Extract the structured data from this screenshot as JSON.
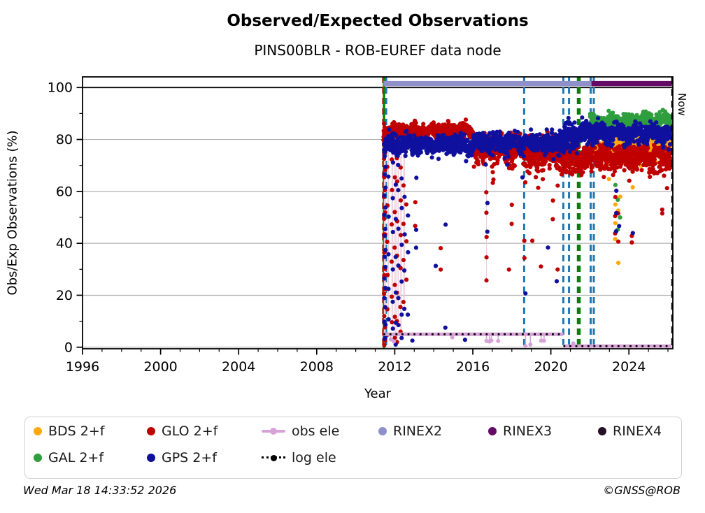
{
  "footer": {
    "left": "Wed Mar 18 14:33:52 2026",
    "right": "©GNSS@ROB"
  },
  "chart_data": {
    "type": "scatter",
    "title": "Observed/Expected Observations",
    "subtitle": "PINS00BLR - ROB-EUREF data node",
    "xlabel": "Year",
    "ylabel": "Obs/Exp Observations (%)",
    "xlim": [
      1996,
      2026.25
    ],
    "ylim": [
      -0.6,
      104.1
    ],
    "x_major_ticks": [
      1996,
      2000,
      2004,
      2008,
      2012,
      2016,
      2020,
      2024
    ],
    "x_tick_labels": [
      "1996",
      "2000",
      "2004",
      "2008",
      "2012",
      "2016",
      "2020",
      "2024"
    ],
    "x_minor_step": 1,
    "y_major_ticks": [
      0,
      20,
      40,
      60,
      80,
      100
    ],
    "y_tick_labels": [
      "0",
      "20",
      "40",
      "60",
      "80",
      "100"
    ],
    "y_minor_step": 10,
    "grid_y": [
      0,
      20,
      40,
      60,
      80
    ],
    "hline_black": 100,
    "grid_color": "#b0b0b0",
    "now": {
      "x": 2026.21,
      "label": "Now",
      "color": "#000000",
      "style": "dashed",
      "width": 2.2
    },
    "vlines": [
      {
        "x": 2011.4,
        "color": "#cc0000",
        "style": "dashed",
        "width": 2.6
      },
      {
        "x": 2011.45,
        "color": "#008000",
        "style": "solid",
        "width": 3.4
      },
      {
        "x": 2011.56,
        "color": "#1f77b4",
        "style": "dashed",
        "width": 3.0
      },
      {
        "x": 2018.63,
        "color": "#1f77b4",
        "style": "dashed",
        "width": 3.0
      },
      {
        "x": 2020.64,
        "color": "#1f77b4",
        "style": "dashed",
        "width": 3.0
      },
      {
        "x": 2020.93,
        "color": "#1f77b4",
        "style": "dashed",
        "width": 3.0
      },
      {
        "x": 2021.43,
        "color": "#0a7d0a",
        "style": "dashed",
        "width": 5.5
      },
      {
        "x": 2022.04,
        "color": "#1f77b4",
        "style": "dashed",
        "width": 3.0
      },
      {
        "x": 2022.2,
        "color": "#1f77b4",
        "style": "dashed",
        "width": 3.0
      }
    ],
    "rinex_lines": [
      {
        "name": "RINEX2",
        "color": "#8f8fc9",
        "from": 2011.42,
        "to": 2022.08,
        "y": 101.5
      },
      {
        "name": "RINEX3",
        "color": "#640b66",
        "from": 2022.08,
        "to": 2026.21,
        "y": 101.5
      }
    ],
    "ele_lines": {
      "obs": {
        "name": "obs ele",
        "color": "#d7a3d7",
        "width": 5,
        "segments": [
          {
            "from": 2011.42,
            "to": 2020.64,
            "y": 5.0
          },
          {
            "from": 2020.64,
            "to": 2026.18,
            "y": 0.4
          }
        ],
        "drops": [
          {
            "x": 2011.8,
            "y": 3.0
          },
          {
            "x": 2011.95,
            "y": 2.2
          },
          {
            "x": 2014.95,
            "y": 3.8
          },
          {
            "x": 2016.7,
            "y": 2.4
          },
          {
            "x": 2016.85,
            "y": 2.2
          },
          {
            "x": 2016.95,
            "y": 2.6
          },
          {
            "x": 2017.3,
            "y": 2.4
          },
          {
            "x": 2018.7,
            "y": 0.4
          },
          {
            "x": 2018.95,
            "y": 1.0
          },
          {
            "x": 2019.5,
            "y": 2.5
          },
          {
            "x": 2019.65,
            "y": 2.5
          },
          {
            "x": 2021.15,
            "y": 1.5
          }
        ]
      },
      "log": {
        "name": "log ele",
        "color": "#000000",
        "width": 2.8,
        "segments": [
          {
            "from": 2011.42,
            "to": 2020.64,
            "y": 5.0
          },
          {
            "from": 2020.64,
            "to": 2026.18,
            "y": 0.4
          }
        ]
      }
    },
    "series": [
      {
        "name": "BDS 2+f",
        "color": "#ffa90e",
        "r": 3.1,
        "segments": [
          {
            "from": 2022.0,
            "to": 2026.18,
            "mean": 78.0,
            "sd": 2.0,
            "n": 430,
            "wobble": 1.0,
            "tail": [
              0.12,
              10
            ]
          }
        ],
        "streaks": [
          {
            "x": 2023.3,
            "values": [
              55,
              48,
              42
            ]
          },
          {
            "x": 2023.45,
            "values": [
              33,
              52
            ]
          },
          {
            "x": 2023.55,
            "values": [
              58
            ]
          },
          {
            "x": 2024.2,
            "values": [
              61
            ]
          }
        ]
      },
      {
        "name": "GAL 2+f",
        "color": "#2e9e3e",
        "r": 3.1,
        "segments": [
          {
            "from": 2022.0,
            "to": 2026.18,
            "mean": 87.0,
            "sd": 1.3,
            "n": 520,
            "wobble": 0.7,
            "tail": [
              0.04,
              8
            ]
          }
        ],
        "streaks": [
          {
            "x": 2023.3,
            "values": [
              73,
              62
            ]
          },
          {
            "x": 2023.42,
            "values": [
              45,
              57
            ]
          },
          {
            "x": 2023.55,
            "values": [
              50
            ]
          },
          {
            "x": 2024.6,
            "values": [
              83
            ]
          }
        ]
      },
      {
        "name": "GLO 2+f",
        "color": "#c00000",
        "r": 3.1,
        "segments": [
          {
            "from": 2011.42,
            "to": 2016.0,
            "mean": 83.3,
            "sd": 1.3,
            "n": 620,
            "wobble": 0.8,
            "tail": [
              0.04,
              9
            ]
          },
          {
            "from": 2016.0,
            "to": 2018.6,
            "mean": 76.5,
            "sd": 2.2,
            "n": 380,
            "wobble": 0.8,
            "tail": [
              0.1,
              11
            ]
          },
          {
            "from": 2018.6,
            "to": 2020.64,
            "mean": 74.5,
            "sd": 2.8,
            "n": 300,
            "wobble": 0.8,
            "tail": [
              0.1,
              11
            ]
          },
          {
            "from": 2020.64,
            "to": 2021.45,
            "mean": 72.5,
            "sd": 3.0,
            "n": 135,
            "wobble": 0.5,
            "tail": [
              0.1,
              8
            ]
          },
          {
            "from": 2021.45,
            "to": 2026.18,
            "mean": 73.5,
            "sd": 2.2,
            "n": 640,
            "wobble": 0.9,
            "tail": [
              0.1,
              9
            ]
          }
        ],
        "streaks": [
          {
            "x": 2011.46,
            "values": [
              78,
              72,
              65,
              58,
              50,
              43,
              36,
              28,
              20,
              12,
              5,
              1
            ]
          },
          {
            "x": 2011.5,
            "values": [
              75,
              68,
              60,
              52,
              44,
              37,
              30,
              22,
              15,
              8,
              3
            ]
          },
          {
            "x": 2011.62,
            "values": [
              70,
              55,
              40,
              28,
              14,
              5
            ]
          },
          {
            "x": 2011.85,
            "values": [
              72,
              60,
              47,
              33,
              20,
              9
            ]
          },
          {
            "x": 2012.0,
            "values": [
              66,
              52,
              38,
              24,
              12,
              4
            ]
          },
          {
            "x": 2012.12,
            "values": [
              73,
              64,
              49,
              35,
              21,
              10,
              2
            ]
          },
          {
            "x": 2012.3,
            "values": [
              69,
              57,
              43,
              30,
              16,
              6
            ]
          },
          {
            "x": 2012.45,
            "values": [
              62,
              48,
              34,
              18
            ]
          },
          {
            "x": 2012.6,
            "values": [
              55,
              41,
              26
            ]
          },
          {
            "x": 2013.05,
            "values": [
              56,
              47
            ]
          },
          {
            "x": 2014.35,
            "values": [
              38,
              30
            ]
          },
          {
            "x": 2016.7,
            "values": [
              60,
              52,
              43,
              35,
              26
            ]
          },
          {
            "x": 2017.85,
            "values": [
              30
            ]
          },
          {
            "x": 2018.0,
            "values": [
              55,
              47
            ]
          },
          {
            "x": 2018.65,
            "values": [
              41,
              34
            ]
          },
          {
            "x": 2019.05,
            "values": [
              41
            ]
          },
          {
            "x": 2019.5,
            "values": [
              31
            ]
          },
          {
            "x": 2020.1,
            "values": [
              57,
              49
            ]
          },
          {
            "x": 2020.35,
            "values": [
              62,
              30
            ]
          },
          {
            "x": 2023.3,
            "values": [
              58,
              50,
              44
            ]
          },
          {
            "x": 2023.45,
            "values": [
              52,
              41
            ]
          },
          {
            "x": 2024.15,
            "values": [
              43,
              40
            ]
          },
          {
            "x": 2025.7,
            "values": [
              52,
              53
            ]
          },
          {
            "x": 2025.95,
            "values": [
              61
            ]
          }
        ]
      },
      {
        "name": "GPS 2+f",
        "color": "#10109f",
        "r": 3.1,
        "segments": [
          {
            "from": 2011.42,
            "to": 2016.0,
            "mean": 78.0,
            "sd": 1.6,
            "n": 620,
            "wobble": 0.8,
            "tail": [
              0.05,
              8
            ]
          },
          {
            "from": 2016.0,
            "to": 2020.64,
            "mean": 79.0,
            "sd": 1.7,
            "n": 620,
            "wobble": 0.7,
            "tail": [
              0.05,
              8
            ]
          },
          {
            "from": 2020.64,
            "to": 2021.45,
            "mean": 81.0,
            "sd": 2.4,
            "n": 140,
            "wobble": 0.5,
            "tail": [
              0.06,
              7
            ]
          },
          {
            "from": 2021.45,
            "to": 2026.18,
            "mean": 82.5,
            "sd": 1.7,
            "n": 660,
            "wobble": 0.8,
            "tail": [
              0.05,
              7
            ]
          }
        ],
        "streaks": [
          {
            "x": 2011.47,
            "values": [
              74,
              67,
              59,
              51,
              43,
              35,
              27,
              19,
              10,
              3
            ]
          },
          {
            "x": 2011.52,
            "values": [
              70,
              62,
              54,
              46,
              38,
              31,
              23,
              16,
              9,
              4
            ]
          },
          {
            "x": 2011.68,
            "values": [
              66,
              50,
              36,
              22,
              11
            ]
          },
          {
            "x": 2011.9,
            "values": [
              71,
              58,
              44,
              30,
              17,
              7
            ]
          },
          {
            "x": 2012.05,
            "values": [
              63,
              49,
              35,
              21,
              9,
              1
            ]
          },
          {
            "x": 2012.18,
            "values": [
              70,
              61,
              46,
              32,
              19,
              8
            ]
          },
          {
            "x": 2012.35,
            "values": [
              65,
              53,
              39,
              25,
              13,
              3
            ]
          },
          {
            "x": 2012.5,
            "values": [
              58,
              44,
              29,
              15
            ]
          },
          {
            "x": 2012.68,
            "values": [
              51,
              37,
              12
            ]
          },
          {
            "x": 2012.9,
            "values": [
              2
            ]
          },
          {
            "x": 2013.1,
            "values": [
              65,
              45,
              38
            ]
          },
          {
            "x": 2014.1,
            "values": [
              31
            ]
          },
          {
            "x": 2014.6,
            "values": [
              47,
              8
            ]
          },
          {
            "x": 2015.6,
            "values": [
              3
            ]
          },
          {
            "x": 2016.75,
            "values": [
              55,
              44
            ]
          },
          {
            "x": 2018.55,
            "values": [
              65
            ]
          },
          {
            "x": 2018.7,
            "values": [
              21
            ]
          },
          {
            "x": 2019.85,
            "values": [
              38
            ]
          },
          {
            "x": 2020.3,
            "values": [
              25
            ]
          },
          {
            "x": 2023.35,
            "values": [
              60,
              52,
              45
            ]
          },
          {
            "x": 2023.5,
            "values": [
              47
            ]
          },
          {
            "x": 2024.2,
            "values": [
              44
            ]
          }
        ]
      }
    ],
    "legend": {
      "items": [
        {
          "label": "BDS 2+f",
          "type": "dot",
          "color": "#ffa90e",
          "row": 0,
          "col": 0
        },
        {
          "label": "GAL 2+f",
          "type": "dot",
          "color": "#2e9e3e",
          "row": 1,
          "col": 0
        },
        {
          "label": "GLO 2+f",
          "type": "dot",
          "color": "#c00000",
          "row": 0,
          "col": 1
        },
        {
          "label": "GPS 2+f",
          "type": "dot",
          "color": "#10109f",
          "row": 1,
          "col": 1
        },
        {
          "label": "obs ele",
          "type": "line-dot",
          "color": "#d7a3d7",
          "row": 0,
          "col": 2
        },
        {
          "label": "log ele",
          "type": "dotted-line",
          "color": "#000000",
          "row": 1,
          "col": 2
        },
        {
          "label": "RINEX2",
          "type": "dot",
          "color": "#8f8fc9",
          "row": 0,
          "col": 3
        },
        {
          "label": "RINEX3",
          "type": "dot",
          "color": "#640b66",
          "row": 0,
          "col": 4
        },
        {
          "label": "RINEX4",
          "type": "dot",
          "color": "#261026",
          "row": 0,
          "col": 5
        }
      ]
    }
  }
}
